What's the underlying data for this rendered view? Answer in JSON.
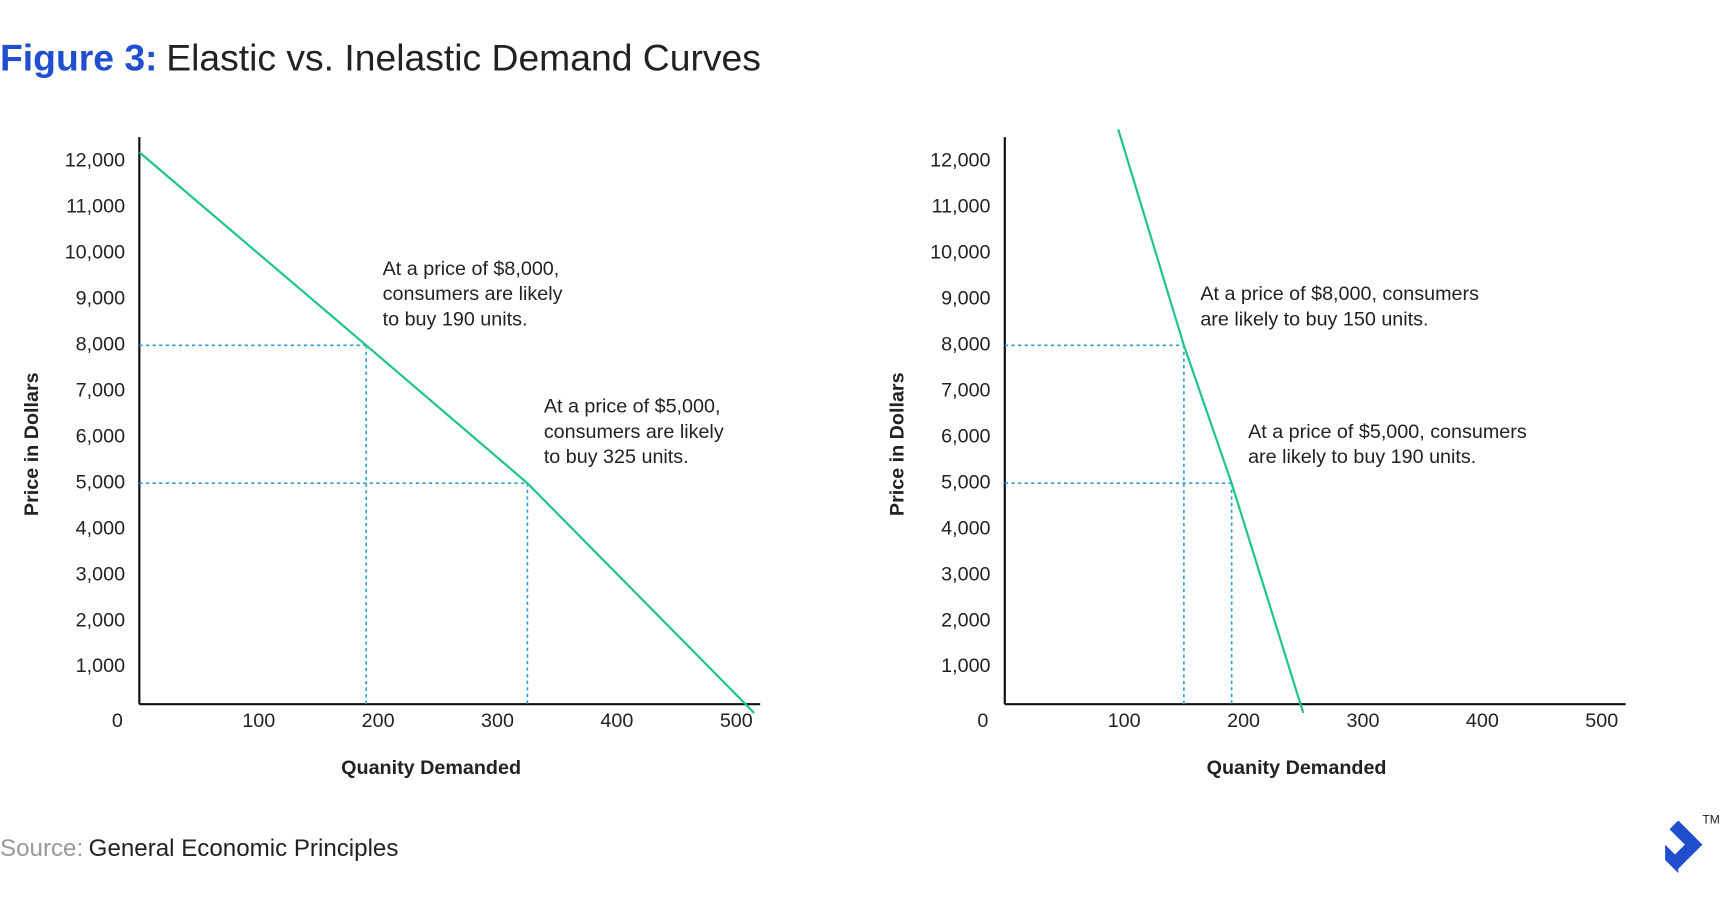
{
  "figure_label": "Figure 3:",
  "title": "Elastic vs. Inelastic Demand Curves",
  "source_label": "Source:",
  "source": "General Economic Principles",
  "logo_mark": "TM",
  "chart_data": [
    {
      "type": "line",
      "x_label": "Quanity Demanded",
      "y_label": "Price in Dollars",
      "xlim": [
        0,
        520
      ],
      "ylim": [
        0,
        12800
      ],
      "xticks": [
        0,
        100,
        200,
        300,
        400,
        500
      ],
      "yticks": [
        {
          "value": 1000,
          "label": "1,000"
        },
        {
          "value": 2000,
          "label": "2,000"
        },
        {
          "value": 3000,
          "label": "3,000"
        },
        {
          "value": 4000,
          "label": "4,000"
        },
        {
          "value": 5000,
          "label": "5,000"
        },
        {
          "value": 6000,
          "label": "6,000"
        },
        {
          "value": 7000,
          "label": "7,000"
        },
        {
          "value": 8000,
          "label": "8,000"
        },
        {
          "value": 9000,
          "label": "9,000"
        },
        {
          "value": 10000,
          "label": "10,000"
        },
        {
          "value": 11000,
          "label": "11,000"
        },
        {
          "value": 12000,
          "label": "12,000"
        }
      ],
      "grid": false,
      "color": "#1fc48c",
      "guide_color": "#2a9fd6",
      "x": [
        0,
        190,
        325,
        515
      ],
      "values": [
        12200,
        8000,
        5000,
        0
      ],
      "annotations": [
        [
          "At a price of $8,000,",
          "consumers are likely",
          "to buy 190 units."
        ],
        [
          "At a price of $5,000,",
          "consumers are likely",
          "to buy 325 units."
        ]
      ]
    },
    {
      "type": "line",
      "x_label": "Quanity Demanded",
      "y_label": "Price in Dollars",
      "xlim": [
        0,
        520
      ],
      "ylim": [
        0,
        12800
      ],
      "xticks": [
        0,
        100,
        200,
        300,
        400,
        500
      ],
      "yticks": [
        {
          "value": 1000,
          "label": "1,000"
        },
        {
          "value": 2000,
          "label": "2,000"
        },
        {
          "value": 3000,
          "label": "3,000"
        },
        {
          "value": 4000,
          "label": "4,000"
        },
        {
          "value": 5000,
          "label": "5,000"
        },
        {
          "value": 6000,
          "label": "6,000"
        },
        {
          "value": 7000,
          "label": "7,000"
        },
        {
          "value": 8000,
          "label": "8,000"
        },
        {
          "value": 9000,
          "label": "9,000"
        },
        {
          "value": 10000,
          "label": "10,000"
        },
        {
          "value": 11000,
          "label": "11,000"
        },
        {
          "value": 12000,
          "label": "12,000"
        }
      ],
      "grid": false,
      "color": "#1fc48c",
      "guide_color": "#2a9fd6",
      "x": [
        95,
        150,
        190,
        250
      ],
      "values": [
        12700,
        8000,
        5000,
        0
      ],
      "annotations": [
        [
          "At a price of $8,000, consumers",
          "are likely to buy 150 units."
        ],
        [
          "At a price of $5,000, consumers",
          "are likely to buy 190 units."
        ]
      ]
    }
  ]
}
